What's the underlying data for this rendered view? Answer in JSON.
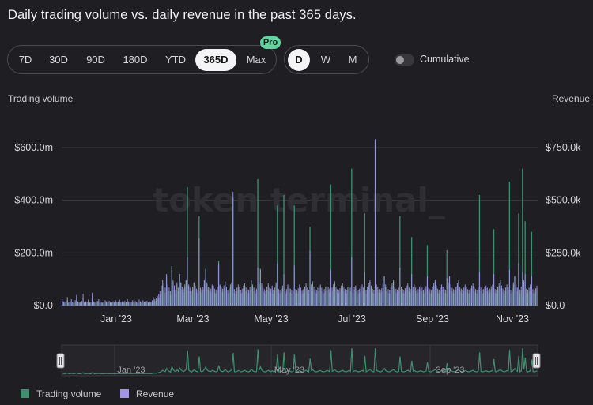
{
  "title": "Daily trading volume vs. daily revenue in the past 365 days.",
  "ranges": [
    "7D",
    "30D",
    "90D",
    "180D",
    "YTD",
    "365D",
    "Max"
  ],
  "active_range": "365D",
  "pro_badge": "Pro",
  "granularity": [
    "D",
    "W",
    "M"
  ],
  "active_granularity": "D",
  "cumulative_label": "Cumulative",
  "cumulative_on": false,
  "watermark": "token terminal_",
  "colors": {
    "background": "#1f1e22",
    "volume": "#3f8f6e",
    "revenue": "#a196e6",
    "grid": "#3a393f"
  },
  "legend": [
    {
      "label": "Trading volume",
      "color": "#3f8f6e"
    },
    {
      "label": "Revenue",
      "color": "#a196e6"
    }
  ],
  "chart_data": {
    "type": "bar",
    "left_axis": {
      "title": "Trading volume",
      "ticks": [
        "$600.0m",
        "$400.0m",
        "$200.0m",
        "$0.0"
      ],
      "tick_values": [
        600,
        400,
        200,
        0
      ],
      "unit": "m",
      "range": [
        0,
        600
      ]
    },
    "right_axis": {
      "title": "Revenue",
      "ticks": [
        "$750.0k",
        "$500.0k",
        "$250.0k",
        "$0.0"
      ],
      "tick_values": [
        750,
        500,
        250,
        0
      ],
      "unit": "k",
      "range": [
        0,
        750
      ]
    },
    "x_ticks": [
      "Jan '23",
      "Mar '23",
      "May '23",
      "Jul '23",
      "Sep '23",
      "Nov '23"
    ],
    "grid": true,
    "legend_position": "bottom-left",
    "days": 365,
    "series": [
      {
        "name": "Trading volume",
        "axis": "left",
        "note": "daily values (millions USD); peaks read off chart",
        "values": [
          18,
          12,
          10,
          14,
          22,
          9,
          12,
          16,
          11,
          10,
          14,
          25,
          12,
          9,
          11,
          13,
          28,
          10,
          12,
          11,
          15,
          10,
          9,
          30,
          12,
          11,
          10,
          13,
          16,
          12,
          10,
          9,
          11,
          14,
          12,
          10,
          13,
          11,
          9,
          12,
          10,
          14,
          11,
          12,
          15,
          10,
          12,
          11,
          13,
          10,
          16,
          12,
          10,
          11,
          14,
          12,
          13,
          10,
          11,
          15,
          12,
          10,
          14,
          11,
          12,
          13,
          10,
          12,
          11,
          14,
          22,
          16,
          18,
          25,
          30,
          40,
          55,
          75,
          60,
          48,
          110,
          70,
          55,
          40,
          150,
          90,
          60,
          45,
          80,
          55,
          120,
          85,
          60,
          50,
          70,
          95,
          130,
          75,
          55,
          40,
          60,
          85,
          65,
          50,
          45,
          70,
          55,
          48,
          60,
          95,
          140,
          80,
          60,
          55,
          50,
          75,
          65,
          50,
          45,
          60,
          170,
          75,
          55,
          50,
          65,
          90,
          60,
          45,
          50,
          70,
          85,
          60,
          48,
          42,
          55,
          70,
          60,
          45,
          50,
          65,
          75,
          55,
          48,
          45,
          60,
          95,
          70,
          55,
          45,
          50,
          60,
          80,
          140,
          75,
          55,
          48,
          42,
          60,
          75,
          55,
          50,
          65,
          45,
          55,
          80,
          60,
          48,
          45,
          50,
          65,
          55,
          42,
          48,
          70,
          65,
          50,
          45,
          55,
          60,
          48,
          45,
          52,
          70,
          55,
          44,
          48,
          60,
          75,
          55,
          45,
          48,
          70,
          85,
          60,
          50,
          45,
          55,
          65,
          70,
          55,
          45,
          48,
          58,
          75,
          60,
          50,
          45,
          55,
          70,
          85,
          60,
          48,
          45,
          52,
          65,
          75,
          55,
          48,
          45,
          60,
          70,
          55,
          45,
          48,
          60,
          65,
          55,
          45,
          50,
          62,
          70,
          55,
          48,
          45,
          60,
          75,
          90,
          65,
          50,
          45,
          55,
          70,
          60,
          48,
          45,
          52,
          80,
          110,
          70,
          55,
          48,
          45,
          60,
          75,
          90,
          60,
          50,
          45,
          55,
          70,
          60,
          48,
          45,
          52,
          65,
          75,
          55,
          48,
          45,
          60,
          70,
          55,
          45,
          48,
          60,
          65,
          55,
          45,
          50,
          62,
          70,
          55,
          48,
          45,
          60,
          75,
          90,
          65,
          50,
          45,
          55,
          70,
          60,
          48,
          45,
          52,
          80,
          110,
          70,
          55,
          48,
          45,
          60,
          75,
          90,
          60,
          50,
          45,
          55,
          70,
          60,
          48,
          45,
          52,
          65,
          75,
          55,
          48,
          45,
          60,
          70,
          55,
          45,
          48,
          60,
          65,
          55,
          45,
          50,
          62,
          70,
          55,
          48,
          45,
          60,
          75,
          90,
          65,
          50,
          45,
          55,
          70,
          60,
          48,
          45,
          52,
          80,
          110,
          70,
          55,
          48,
          45,
          60,
          75,
          90,
          60,
          50,
          45,
          55,
          70,
          60,
          48,
          45,
          52,
          65,
          75,
          55,
          48,
          45,
          60,
          70,
          55,
          45,
          48,
          60,
          65,
          55,
          45
        ],
        "peaks": {
          "96": 450,
          "105": 340,
          "131": 410,
          "150": 480,
          "165": 380,
          "170": 420,
          "178": 380,
          "190": 300,
          "206": 460,
          "222": 520,
          "232": 350,
          "240": 630,
          "259": 340,
          "268": 260,
          "280": 230,
          "295": 210,
          "320": 420,
          "331": 290,
          "343": 470,
          "350": 350,
          "353": 520,
          "355": 320,
          "360": 280
        }
      },
      {
        "name": "Revenue",
        "axis": "right",
        "note": "daily values (thousands USD); peaks read off chart",
        "values": [
          30,
          20,
          18,
          25,
          40,
          15,
          22,
          30,
          18,
          16,
          25,
          50,
          20,
          15,
          18,
          22,
          55,
          16,
          20,
          18,
          28,
          16,
          15,
          60,
          20,
          18,
          16,
          22,
          30,
          20,
          16,
          15,
          18,
          25,
          20,
          16,
          22,
          18,
          15,
          20,
          16,
          25,
          18,
          20,
          28,
          16,
          20,
          18,
          22,
          16,
          30,
          20,
          16,
          18,
          25,
          20,
          22,
          16,
          18,
          28,
          20,
          16,
          25,
          18,
          20,
          22,
          16,
          20,
          18,
          25,
          40,
          30,
          35,
          45,
          55,
          70,
          95,
          120,
          110,
          85,
          150,
          100,
          85,
          70,
          180,
          120,
          95,
          75,
          110,
          85,
          150,
          110,
          90,
          80,
          100,
          120,
          160,
          100,
          85,
          70,
          90,
          110,
          95,
          80,
          75,
          100,
          85,
          78,
          90,
          120,
          170,
          110,
          90,
          85,
          80,
          100,
          95,
          80,
          75,
          90,
          200,
          100,
          85,
          80,
          95,
          115,
          90,
          75,
          80,
          100,
          110,
          90,
          78,
          72,
          85,
          100,
          90,
          75,
          80,
          95,
          105,
          85,
          78,
          75,
          90,
          120,
          100,
          85,
          75,
          80,
          90,
          110,
          170,
          105,
          85,
          78,
          72,
          90,
          105,
          85,
          80,
          95,
          75,
          85,
          110,
          90,
          78,
          75,
          80,
          95,
          85,
          72,
          78,
          100,
          95,
          80,
          75,
          85,
          90,
          78,
          75,
          82,
          100,
          85,
          74,
          78,
          90,
          105,
          85,
          75,
          78,
          100,
          115,
          90,
          80,
          75,
          85,
          95,
          100,
          85,
          75,
          78,
          88,
          105,
          90,
          80,
          75,
          85,
          100,
          115,
          90,
          78,
          75,
          82,
          95,
          105,
          85,
          78,
          75,
          90,
          100,
          85,
          75,
          78,
          90,
          95,
          85,
          75,
          80,
          92,
          100,
          85,
          78,
          75,
          90,
          105,
          120,
          95,
          80,
          75,
          85,
          100,
          90,
          78,
          75,
          82,
          110,
          140,
          100,
          85,
          78,
          75,
          90,
          105,
          120,
          90,
          80,
          75,
          85,
          100,
          90,
          78,
          75,
          82,
          95,
          105,
          85,
          78,
          75,
          90,
          100,
          85,
          75,
          78,
          90,
          95,
          85,
          75,
          80,
          92,
          100,
          85,
          78,
          75,
          90,
          105,
          120,
          95,
          80,
          75,
          85,
          100,
          90,
          78,
          75,
          82,
          110,
          140,
          100,
          85,
          78,
          75,
          90,
          105,
          120,
          90,
          80,
          75,
          85,
          100,
          90,
          78,
          75,
          82,
          95,
          105,
          85,
          78,
          75,
          90,
          100,
          85,
          75,
          78,
          90,
          95,
          85,
          75,
          80,
          92,
          100,
          85,
          78,
          75,
          90,
          105,
          120,
          95,
          80,
          75,
          85,
          100,
          90,
          78,
          75,
          82,
          110,
          140,
          100,
          85,
          78,
          75,
          90,
          105,
          120,
          90,
          80,
          75,
          85,
          100,
          90,
          78,
          75,
          82,
          95,
          105,
          85,
          78,
          75,
          90,
          100,
          85,
          75,
          78,
          90,
          95,
          85,
          75
        ],
        "peaks": {
          "96": 230,
          "105": 320,
          "131": 540,
          "150": 180,
          "165": 200,
          "170": 150,
          "178": 190,
          "190": 260,
          "206": 170,
          "222": 230,
          "232": 160,
          "240": 790,
          "259": 180,
          "268": 150,
          "280": 140,
          "295": 130,
          "320": 160,
          "331": 150,
          "343": 170,
          "350": 200,
          "353": 160,
          "355": 150,
          "360": 140
        }
      }
    ]
  },
  "navigator": {
    "labels": [
      "Jan '23",
      "May '23",
      "Sep '23"
    ]
  }
}
